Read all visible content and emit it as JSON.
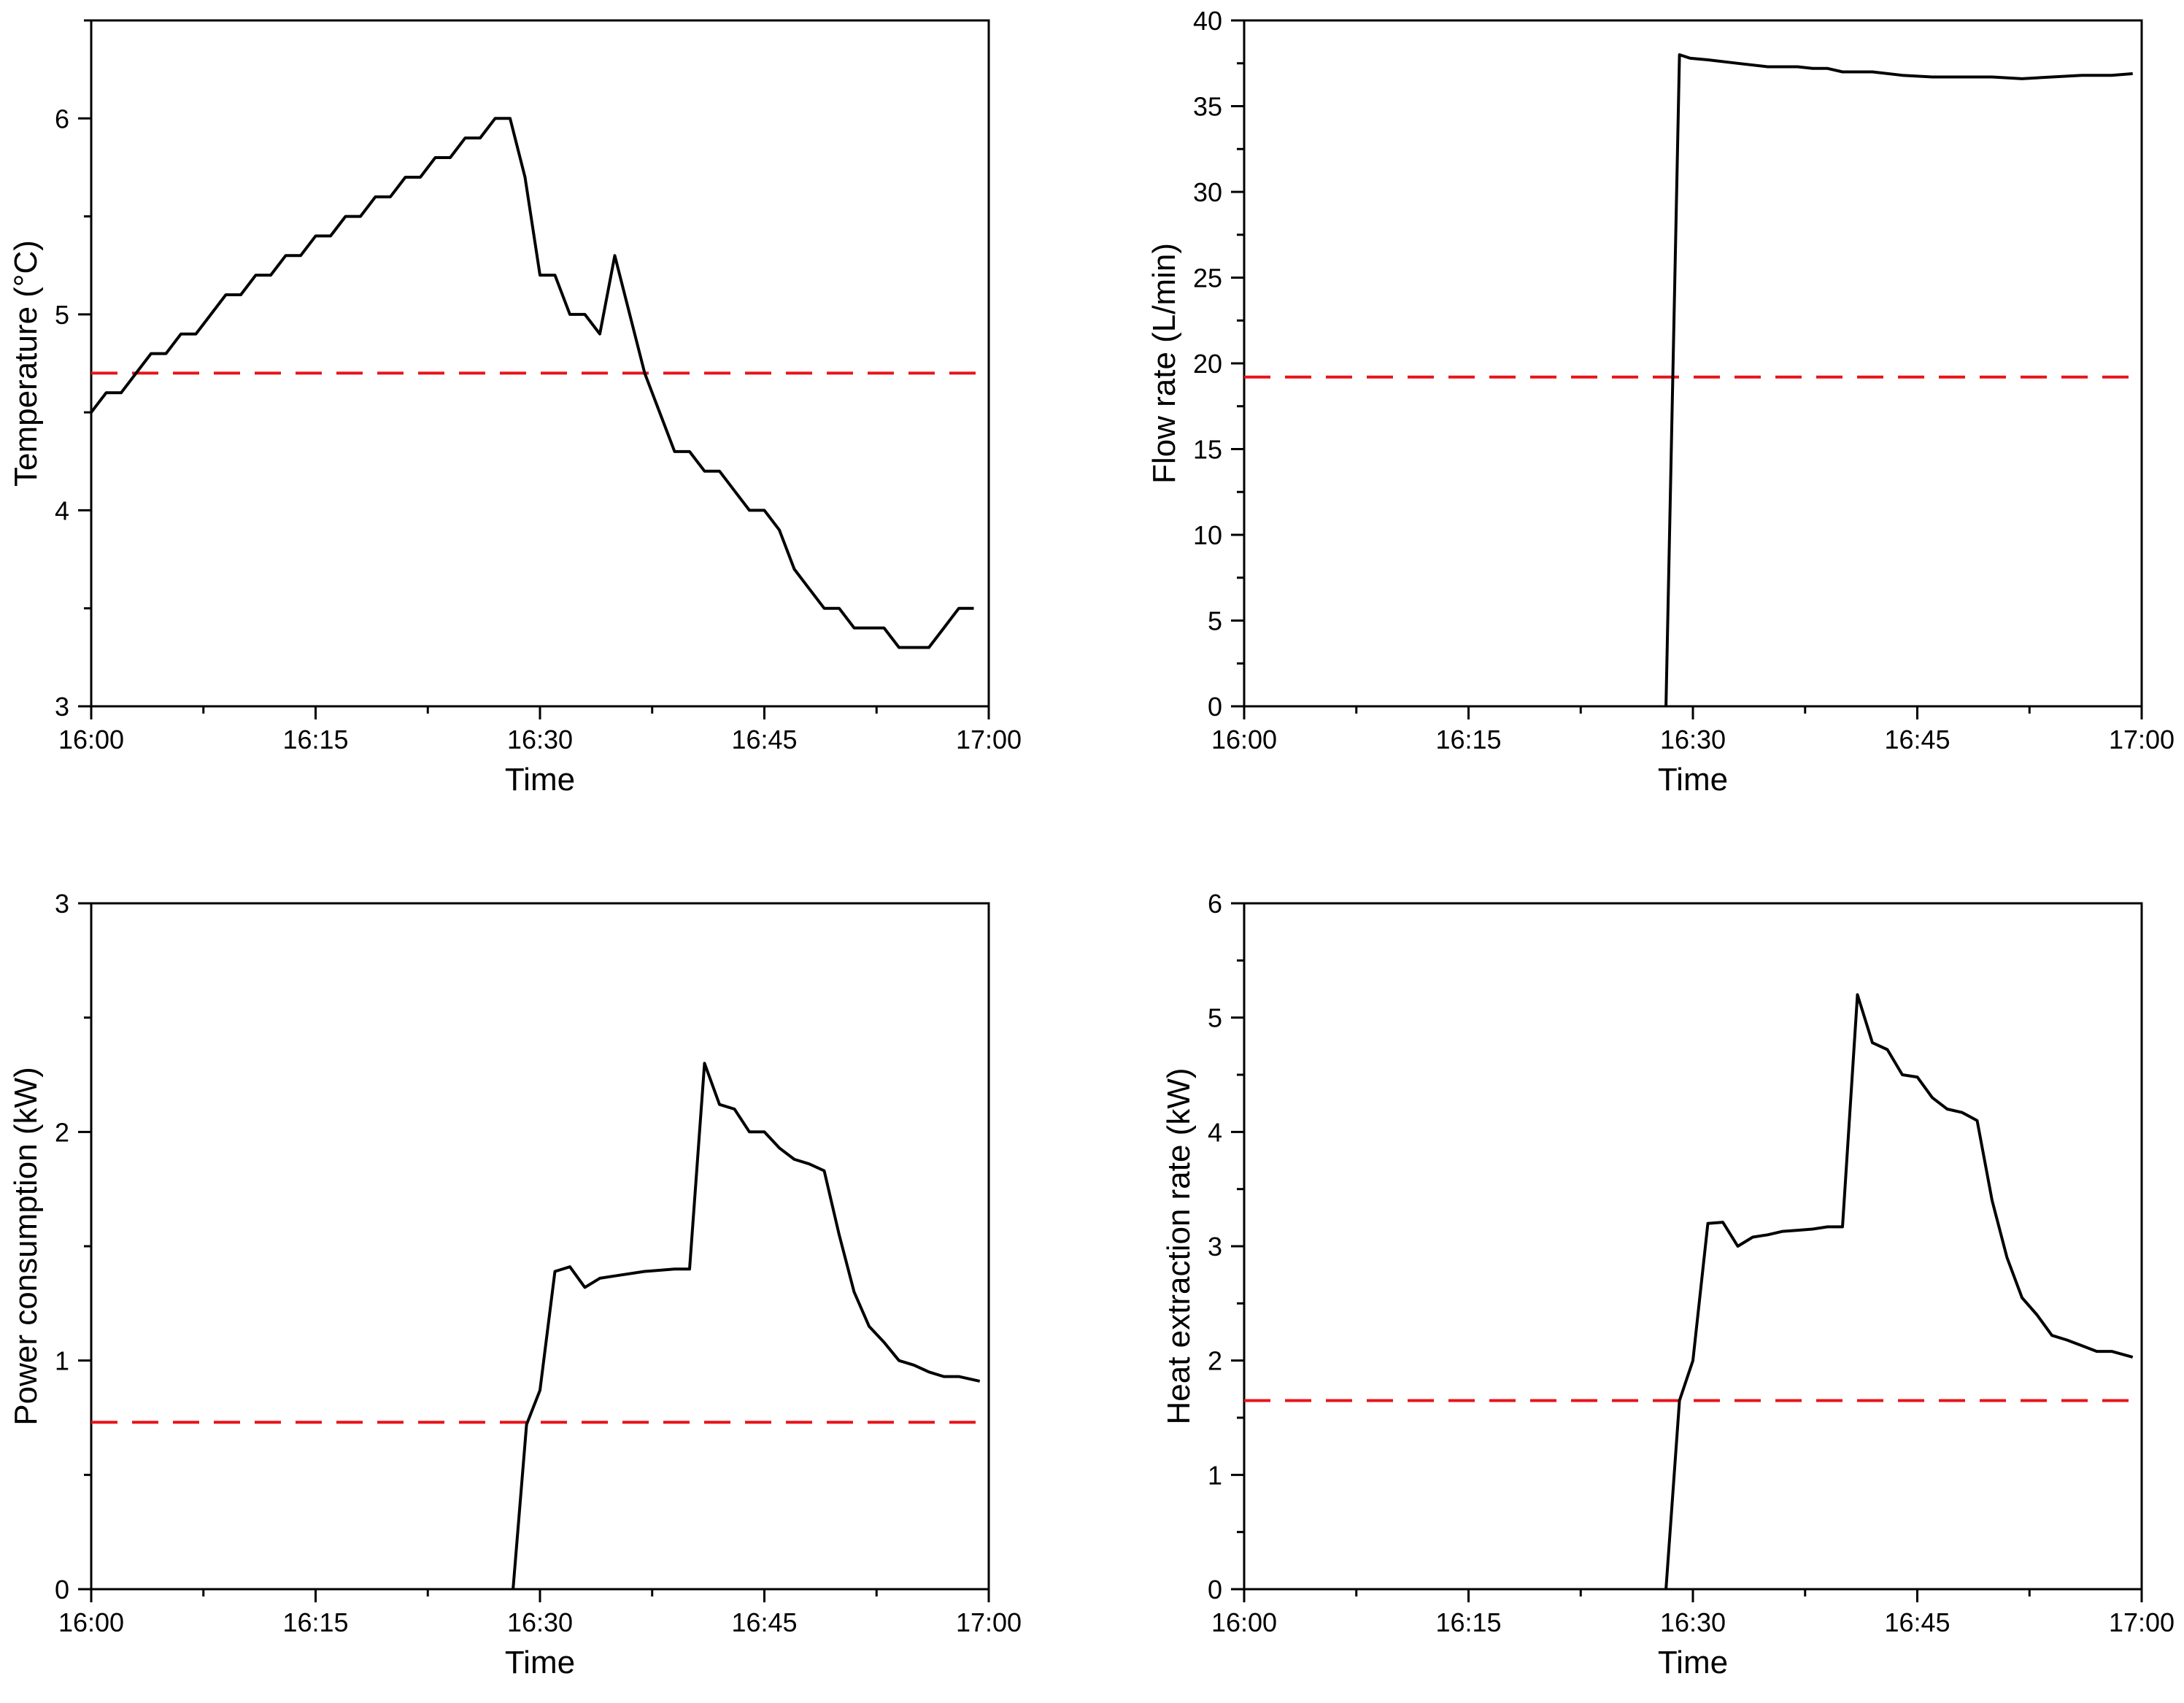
{
  "colors": {
    "series": "#000000",
    "reference": "#e8141a",
    "background": "#ffffff"
  },
  "chart_data": [
    {
      "id": "temperature",
      "type": "line",
      "title": "",
      "xlabel": "Time",
      "ylabel": "Temperature (°C)",
      "xlim": [
        0,
        60
      ],
      "ylim": [
        3,
        6.5
      ],
      "xticks": [
        0,
        15,
        30,
        45,
        60
      ],
      "xtick_labels": [
        "16:00",
        "16:15",
        "16:30",
        "16:45",
        "17:00"
      ],
      "yticks": [
        3,
        4,
        5,
        6
      ],
      "ytick_labels": [
        "3",
        "4",
        "5",
        "6"
      ],
      "reference_line": {
        "y": 4.7,
        "style": "dashed",
        "color": "#e8141a"
      },
      "series": [
        {
          "name": "Temperature",
          "x": [
            0,
            1,
            2,
            3,
            4,
            5,
            6,
            7,
            8,
            9,
            10,
            11,
            12,
            13,
            14,
            15,
            16,
            17,
            18,
            19,
            20,
            21,
            22,
            23,
            24,
            25,
            26,
            27,
            28,
            29,
            30,
            31,
            32,
            33,
            34,
            35,
            36,
            37,
            38,
            39,
            40,
            41,
            42,
            43,
            44,
            45,
            46,
            47,
            48,
            49,
            50,
            51,
            52,
            53,
            54,
            55,
            56,
            57,
            58,
            59
          ],
          "y": [
            4.5,
            4.6,
            4.6,
            4.7,
            4.8,
            4.8,
            4.9,
            4.9,
            5.0,
            5.1,
            5.1,
            5.2,
            5.2,
            5.3,
            5.3,
            5.4,
            5.4,
            5.5,
            5.5,
            5.6,
            5.6,
            5.7,
            5.7,
            5.8,
            5.8,
            5.9,
            5.9,
            6.0,
            6.0,
            5.7,
            5.2,
            5.2,
            5.0,
            5.0,
            4.9,
            5.3,
            5.0,
            4.7,
            4.5,
            4.3,
            4.3,
            4.2,
            4.2,
            4.1,
            4.0,
            4.0,
            3.9,
            3.7,
            3.6,
            3.5,
            3.5,
            3.4,
            3.4,
            3.4,
            3.3,
            3.3,
            3.3,
            3.4,
            3.5,
            3.5
          ]
        }
      ]
    },
    {
      "id": "flow-rate",
      "type": "line",
      "title": "",
      "xlabel": "Time",
      "ylabel": "Flow rate (L/min)",
      "xlim": [
        0,
        60
      ],
      "ylim": [
        0,
        40
      ],
      "xticks": [
        0,
        15,
        30,
        45,
        60
      ],
      "xtick_labels": [
        "16:00",
        "16:15",
        "16:30",
        "16:45",
        "17:00"
      ],
      "yticks": [
        0,
        5,
        10,
        15,
        20,
        25,
        30,
        35,
        40
      ],
      "ytick_labels": [
        "0",
        "5",
        "10",
        "15",
        "20",
        "25",
        "30",
        "35",
        "40"
      ],
      "reference_line": {
        "y": 19.2,
        "style": "dashed",
        "color": "#e8141a"
      },
      "series": [
        {
          "name": "Flow rate",
          "x": [
            28.2,
            29.1,
            29.8,
            31,
            33,
            35,
            37,
            38,
            39,
            40,
            42,
            44,
            46,
            48,
            50,
            52,
            54,
            56,
            58,
            59.4
          ],
          "y": [
            0,
            38.0,
            37.8,
            37.7,
            37.5,
            37.3,
            37.3,
            37.2,
            37.2,
            37.0,
            37.0,
            36.8,
            36.7,
            36.7,
            36.7,
            36.6,
            36.7,
            36.8,
            36.8,
            36.9
          ]
        }
      ]
    },
    {
      "id": "power-consumption",
      "type": "line",
      "title": "",
      "xlabel": "Time",
      "ylabel": "Power consumption (kW)",
      "xlim": [
        0,
        60
      ],
      "ylim": [
        0,
        3
      ],
      "xticks": [
        0,
        15,
        30,
        45,
        60
      ],
      "xtick_labels": [
        "16:00",
        "16:15",
        "16:30",
        "16:45",
        "17:00"
      ],
      "yticks": [
        0,
        1,
        2,
        3
      ],
      "ytick_labels": [
        "0",
        "1",
        "2",
        "3"
      ],
      "reference_line": {
        "y": 0.73,
        "style": "dashed",
        "color": "#e8141a"
      },
      "series": [
        {
          "name": "Power consumption",
          "x": [
            28.2,
            29.1,
            30,
            31,
            32,
            33,
            34,
            35,
            37,
            39,
            40,
            41,
            42,
            43,
            44,
            45,
            46,
            47,
            48,
            49,
            50,
            51,
            52,
            53,
            54,
            55,
            56,
            57,
            58,
            59.4
          ],
          "y": [
            0,
            0.72,
            0.87,
            1.39,
            1.41,
            1.32,
            1.36,
            1.37,
            1.39,
            1.4,
            1.4,
            2.3,
            2.12,
            2.1,
            2.0,
            2.0,
            1.93,
            1.88,
            1.86,
            1.83,
            1.55,
            1.3,
            1.15,
            1.08,
            1.0,
            0.98,
            0.95,
            0.93,
            0.93,
            0.91
          ]
        }
      ]
    },
    {
      "id": "heat-extraction-rate",
      "type": "line",
      "title": "",
      "xlabel": "Time",
      "ylabel": "Heat extraction rate (kW)",
      "xlim": [
        0,
        60
      ],
      "ylim": [
        0,
        6
      ],
      "xticks": [
        0,
        15,
        30,
        45,
        60
      ],
      "xtick_labels": [
        "16:00",
        "16:15",
        "16:30",
        "16:45",
        "17:00"
      ],
      "yticks": [
        0,
        1,
        2,
        3,
        4,
        5,
        6
      ],
      "ytick_labels": [
        "0",
        "1",
        "2",
        "3",
        "4",
        "5",
        "6"
      ],
      "reference_line": {
        "y": 1.65,
        "style": "dashed",
        "color": "#e8141a"
      },
      "series": [
        {
          "name": "Heat extraction rate",
          "x": [
            28.2,
            29.1,
            30,
            31,
            32,
            33,
            34,
            35,
            36,
            37,
            38,
            39,
            40,
            41,
            42,
            43,
            44,
            45,
            46,
            47,
            48,
            49,
            50,
            51,
            52,
            53,
            54,
            55,
            56,
            57,
            58,
            59.4
          ],
          "y": [
            0,
            1.65,
            2.0,
            3.2,
            3.21,
            3.0,
            3.08,
            3.1,
            3.13,
            3.14,
            3.15,
            3.17,
            3.17,
            5.2,
            4.78,
            4.72,
            4.5,
            4.48,
            4.3,
            4.2,
            4.17,
            4.1,
            3.4,
            2.9,
            2.55,
            2.4,
            2.22,
            2.18,
            2.13,
            2.08,
            2.08,
            2.03
          ]
        }
      ]
    }
  ]
}
